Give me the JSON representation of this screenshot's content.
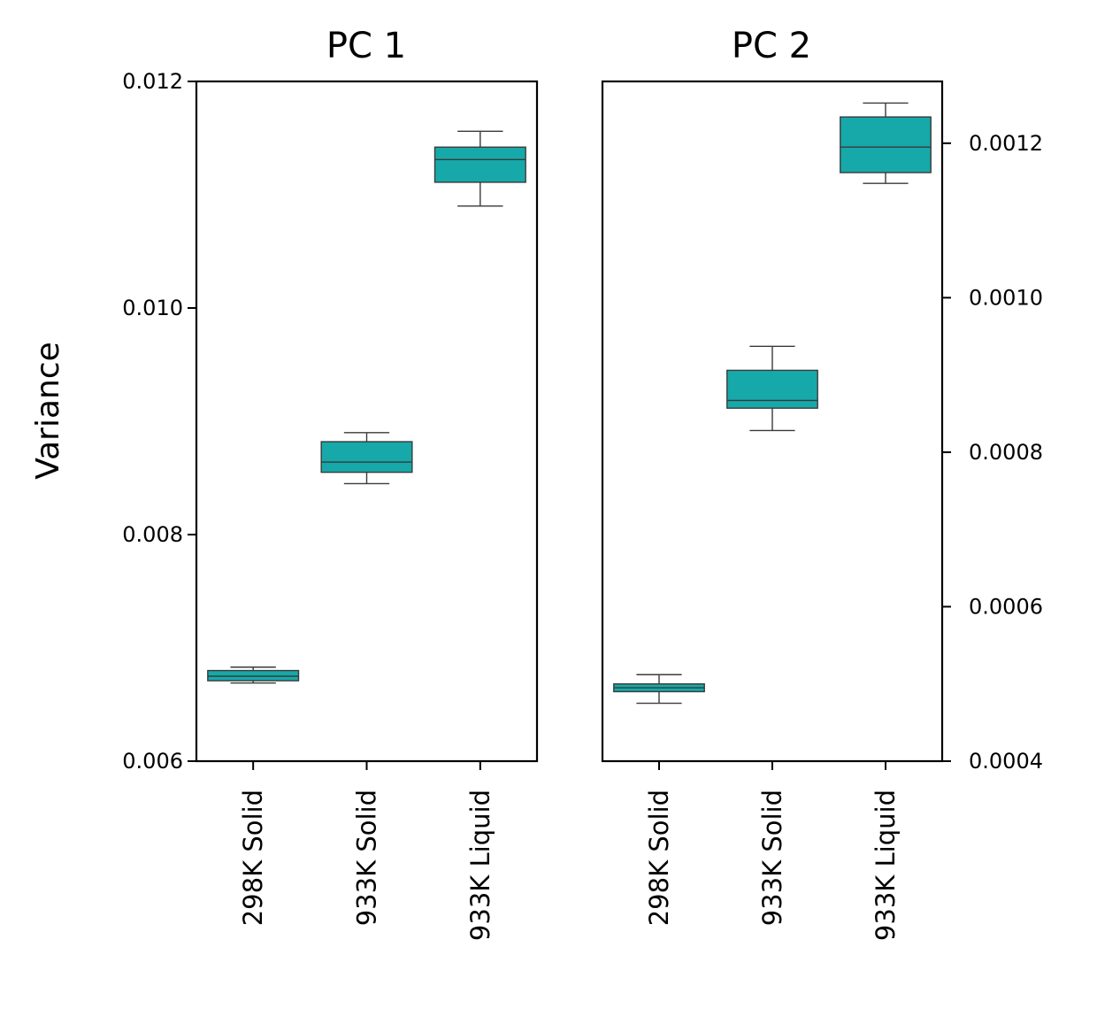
{
  "chart_data": [
    {
      "type": "box",
      "title": "PC 1",
      "ylabel": "Variance",
      "xlabel": "",
      "ylim": [
        0.006,
        0.012
      ],
      "yticks": [
        "0.006",
        "0.008",
        "0.010",
        "0.012"
      ],
      "categories": [
        "298K Solid",
        "933K Solid",
        "933K Liquid"
      ],
      "box_color": "#17A9A9",
      "boxes": [
        {
          "category": "298K Solid",
          "whisker_low": 0.00669,
          "q1": 0.00671,
          "median": 0.00675,
          "q3": 0.0068,
          "whisker_high": 0.00683
        },
        {
          "category": "933K Solid",
          "whisker_low": 0.00845,
          "q1": 0.00855,
          "median": 0.00864,
          "q3": 0.00882,
          "whisker_high": 0.0089
        },
        {
          "category": "933K Liquid",
          "whisker_low": 0.0109,
          "q1": 0.01111,
          "median": 0.01131,
          "q3": 0.01142,
          "whisker_high": 0.01156
        }
      ]
    },
    {
      "type": "box",
      "title": "PC 2",
      "ylabel": "",
      "xlabel": "",
      "ylim": [
        0.0004,
        0.00128
      ],
      "yticks": [
        "0.0004",
        "0.0006",
        "0.0008",
        "0.0010",
        "0.0012"
      ],
      "categories": [
        "298K Solid",
        "933K Solid",
        "933K Liquid"
      ],
      "box_color": "#17A9A9",
      "boxes": [
        {
          "category": "298K Solid",
          "whisker_low": 0.000475,
          "q1": 0.00049,
          "median": 0.000495,
          "q3": 0.0005,
          "whisker_high": 0.000512
        },
        {
          "category": "933K Solid",
          "whisker_low": 0.000828,
          "q1": 0.000857,
          "median": 0.000867,
          "q3": 0.000906,
          "whisker_high": 0.000937
        },
        {
          "category": "933K Liquid",
          "whisker_low": 0.001148,
          "q1": 0.001162,
          "median": 0.001195,
          "q3": 0.001234,
          "whisker_high": 0.001252
        }
      ]
    }
  ]
}
